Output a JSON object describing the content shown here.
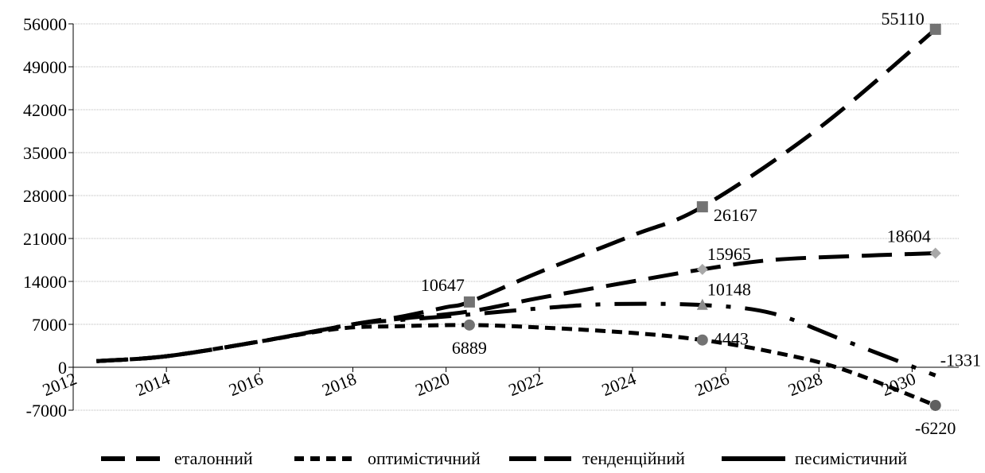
{
  "chart_data": {
    "type": "line",
    "title": "",
    "xlabel": "",
    "ylabel": "",
    "xlim": [
      2012,
      2031
    ],
    "ylim": [
      -7000,
      56000
    ],
    "y_ticks": [
      -7000,
      0,
      7000,
      14000,
      21000,
      28000,
      35000,
      42000,
      49000,
      56000
    ],
    "y_tick_labels": [
      "-7000",
      "0",
      "7000",
      "14000",
      "21000",
      "28000",
      "35000",
      "42000",
      "49000",
      "56000"
    ],
    "x_ticks": [
      2012,
      2014,
      2016,
      2018,
      2020,
      2022,
      2024,
      2026,
      2028,
      2030
    ],
    "x_tick_labels": [
      "2012",
      "2014",
      "2016",
      "2018",
      "2020",
      "2022",
      "2024",
      "2026",
      "2028",
      "2030"
    ],
    "grid": "horizontal",
    "legend_position": "bottom",
    "series": [
      {
        "name": "еталонний",
        "color": "#000000",
        "dash": "long-dash",
        "x": [
          2012.5,
          2014,
          2016,
          2018,
          2019,
          2020,
          2020.5,
          2022,
          2024,
          2025.5,
          2028,
          2030.5
        ],
        "y": [
          1000,
          1800,
          4200,
          7000,
          8200,
          9800,
          10647,
          15500,
          21500,
          26167,
          39000,
          55110
        ]
      },
      {
        "name": "оптимістичний",
        "color": "#000000",
        "dash": "short-dash",
        "x": [
          2012.5,
          2014,
          2016,
          2017.7,
          2019,
          2020.5,
          2022,
          2024,
          2025.5,
          2027,
          2028.5,
          2030.5
        ],
        "y": [
          1000,
          1800,
          4200,
          6300,
          6700,
          6889,
          6500,
          5600,
          4443,
          2500,
          -300,
          -6220
        ]
      },
      {
        "name": "тенденційний",
        "color": "#000000",
        "dash": "long-dash",
        "x": [
          2012.5,
          2014,
          2016,
          2018,
          2019,
          2020.5,
          2022,
          2024,
          2025.5,
          2027,
          2029,
          2030.5
        ],
        "y": [
          1000,
          1800,
          4200,
          7000,
          7900,
          9100,
          11300,
          14000,
          15965,
          17500,
          18200,
          18604
        ]
      },
      {
        "name": "песимістичний",
        "color": "#000000",
        "dash": "dash-dot",
        "x": [
          2012.5,
          2014,
          2016,
          2018,
          2019,
          2020.5,
          2022,
          2023.5,
          2025.5,
          2027,
          2028.5,
          2030.5
        ],
        "y": [
          1000,
          1800,
          4200,
          7000,
          7700,
          8600,
          9600,
          10300,
          10148,
          8800,
          4500,
          -1331
        ]
      }
    ],
    "markers": [
      {
        "series": "еталонний",
        "x": 2020.5,
        "y": 10647,
        "shape": "square",
        "color": "#737373",
        "label": "10647",
        "label_pos": "above-left"
      },
      {
        "series": "еталонний",
        "x": 2025.5,
        "y": 26167,
        "shape": "square",
        "color": "#737373",
        "label": "26167",
        "label_pos": "below-right"
      },
      {
        "series": "еталонний",
        "x": 2030.5,
        "y": 55110,
        "shape": "square",
        "color": "#737373",
        "label": "55110",
        "label_pos": "left"
      },
      {
        "series": "оптимістичний",
        "x": 2020.5,
        "y": 6889,
        "shape": "circle",
        "color": "#737373",
        "label": "6889",
        "label_pos": "below"
      },
      {
        "series": "оптимістичний",
        "x": 2025.5,
        "y": 4443,
        "shape": "circle",
        "color": "#737373",
        "label": "4443",
        "label_pos": "right"
      },
      {
        "series": "оптимістичний",
        "x": 2030.5,
        "y": -6220,
        "shape": "circle",
        "color": "#5f5f5f",
        "label": "-6220",
        "label_pos": "below"
      },
      {
        "series": "тенденційний",
        "x": 2025.5,
        "y": 15965,
        "shape": "diamond",
        "color": "#a8a8a8",
        "label": "15965",
        "label_pos": "above-right"
      },
      {
        "series": "тенденційний",
        "x": 2030.5,
        "y": 18604,
        "shape": "diamond",
        "color": "#a8a8a8",
        "label": "18604",
        "label_pos": "above-left"
      },
      {
        "series": "песимістичний",
        "x": 2025.5,
        "y": 10148,
        "shape": "triangle",
        "color": "#8c8c8c",
        "label": "10148",
        "label_pos": "above-right"
      },
      {
        "series": "песимістичний",
        "x": 2030.5,
        "y": -1331,
        "label": "-1331",
        "label_pos": "above-right"
      }
    ]
  }
}
